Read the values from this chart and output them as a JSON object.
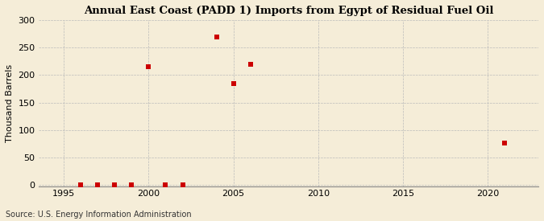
{
  "title": "Annual East Coast (PADD 1) Imports from Egypt of Residual Fuel Oil",
  "ylabel": "Thousand Barrels",
  "source": "Source: U.S. Energy Information Administration",
  "background_color": "#f5edd8",
  "plot_bg_color": "#f5edd8",
  "marker_color": "#cc0000",
  "marker": "s",
  "marker_size": 4,
  "xlim": [
    1993.5,
    2023
  ],
  "ylim": [
    -3,
    300
  ],
  "yticks": [
    0,
    50,
    100,
    150,
    200,
    250,
    300
  ],
  "xticks": [
    1995,
    2000,
    2005,
    2010,
    2015,
    2020
  ],
  "grid_color": "#bbbbbb",
  "data": {
    "years": [
      1996,
      1997,
      1998,
      1999,
      2000,
      2001,
      2002,
      2004,
      2005,
      2006,
      2021
    ],
    "values": [
      0,
      0,
      0,
      0,
      215,
      0,
      0,
      270,
      185,
      220,
      76
    ]
  }
}
